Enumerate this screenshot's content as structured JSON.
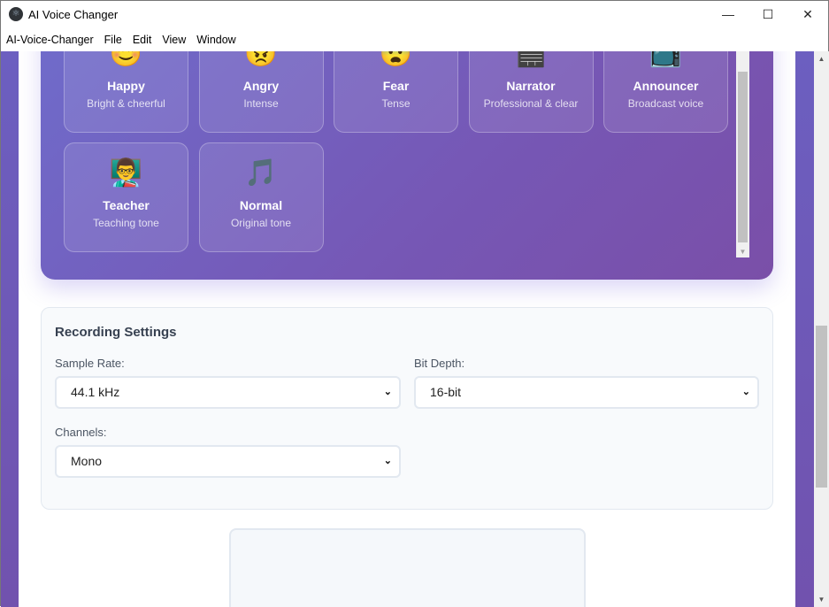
{
  "window": {
    "title": "AI Voice Changer",
    "minimize": "—",
    "maximize": "☐",
    "close": "✕"
  },
  "menu": [
    "AI-Voice-Changer",
    "File",
    "Edit",
    "View",
    "Window"
  ],
  "voices": [
    {
      "emoji": "😊",
      "name": "Happy",
      "desc": "Bright & cheerful"
    },
    {
      "emoji": "😠",
      "name": "Angry",
      "desc": "Intense"
    },
    {
      "emoji": "😨",
      "name": "Fear",
      "desc": "Tense"
    },
    {
      "emoji": "🎬",
      "name": "Narrator",
      "desc": "Professional & clear"
    },
    {
      "emoji": "📺",
      "name": "Announcer",
      "desc": "Broadcast voice"
    },
    {
      "emoji": "👨‍🏫",
      "name": "Teacher",
      "desc": "Teaching tone"
    },
    {
      "emoji": "🎵",
      "name": "Normal",
      "desc": "Original tone"
    }
  ],
  "settings": {
    "title": "Recording Settings",
    "sample_rate": {
      "label": "Sample Rate:",
      "value": "44.1 kHz"
    },
    "bit_depth": {
      "label": "Bit Depth:",
      "value": "16-bit"
    },
    "channels": {
      "label": "Channels:",
      "value": "Mono"
    }
  }
}
